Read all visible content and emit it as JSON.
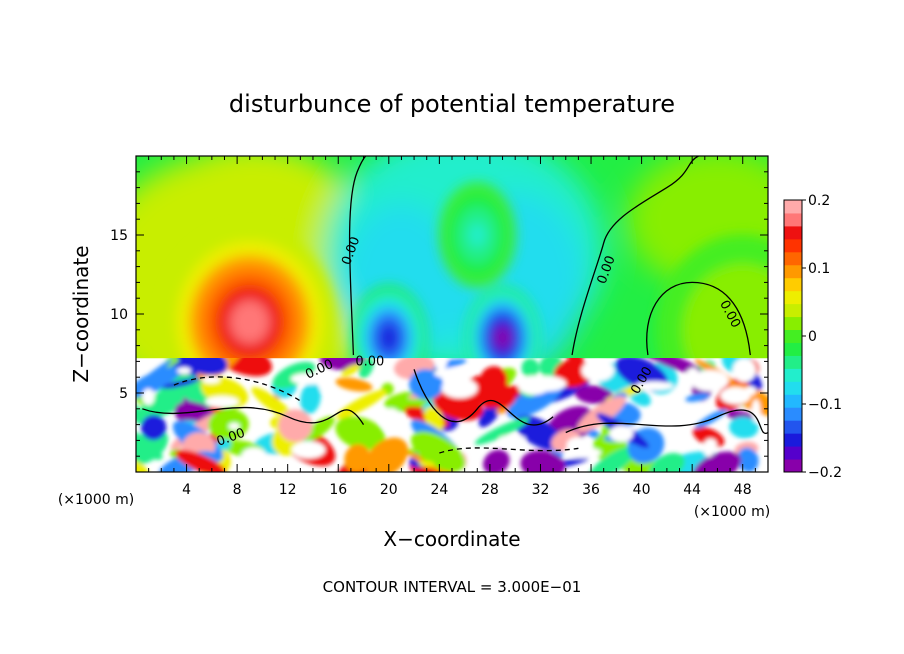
{
  "chart_data": {
    "type": "heatmap",
    "title": "disturbunce of potential temperature",
    "xlabel": "X−coordinate",
    "ylabel": "Z−coordinate",
    "x_unit": "(×1000 m)",
    "y_unit": "(×1000 m)",
    "xlim": [
      0,
      50
    ],
    "ylim": [
      0,
      20
    ],
    "x_ticks": [
      4,
      8,
      12,
      16,
      20,
      24,
      28,
      32,
      36,
      40,
      44,
      48
    ],
    "x_tick_labels": [
      "4",
      "8",
      "12",
      "16",
      "20",
      "24",
      "28",
      "32",
      "36",
      "40",
      "44",
      "48"
    ],
    "y_ticks": [
      5,
      10,
      15
    ],
    "y_tick_labels": [
      "5",
      "10",
      "15"
    ],
    "colorbar": {
      "range": [
        -0.2,
        0.2
      ],
      "ticks": [
        0.2,
        0.1,
        0,
        -0.1,
        -0.2
      ],
      "tick_labels": [
        "0.2",
        "0.1",
        "0",
        "−0.1",
        "−0.2"
      ],
      "colors": [
        "#8800aa",
        "#5500cc",
        "#1a1adc",
        "#2255ee",
        "#2a8cff",
        "#22b8ff",
        "#22ddee",
        "#22eecc",
        "#22ee88",
        "#22ee44",
        "#44ee22",
        "#88ee00",
        "#c8ee00",
        "#eeee00",
        "#ffcc00",
        "#ff9900",
        "#ff6600",
        "#ff3300",
        "#ee1111",
        "#ff7777",
        "#ffaaaa"
      ]
    },
    "contour_labels": [
      "0.00",
      "0.00",
      "0.00",
      "0.00",
      "0.00",
      "0.00",
      "0.00"
    ],
    "annotation": "CONTOUR INTERVAL = 3.000E−01",
    "features": [
      {
        "kind": "warm",
        "x": 9,
        "z": 9.5,
        "value": 0.18
      },
      {
        "kind": "cool",
        "x": 20,
        "z": 8.5,
        "value": -0.16
      },
      {
        "kind": "cool",
        "x": 29,
        "z": 8.5,
        "value": -0.19
      },
      {
        "kind": "cool",
        "x": 27,
        "z": 15,
        "value": -0.05
      },
      {
        "kind": "warm",
        "x": 48,
        "z": 9,
        "value": 0.02
      }
    ]
  }
}
